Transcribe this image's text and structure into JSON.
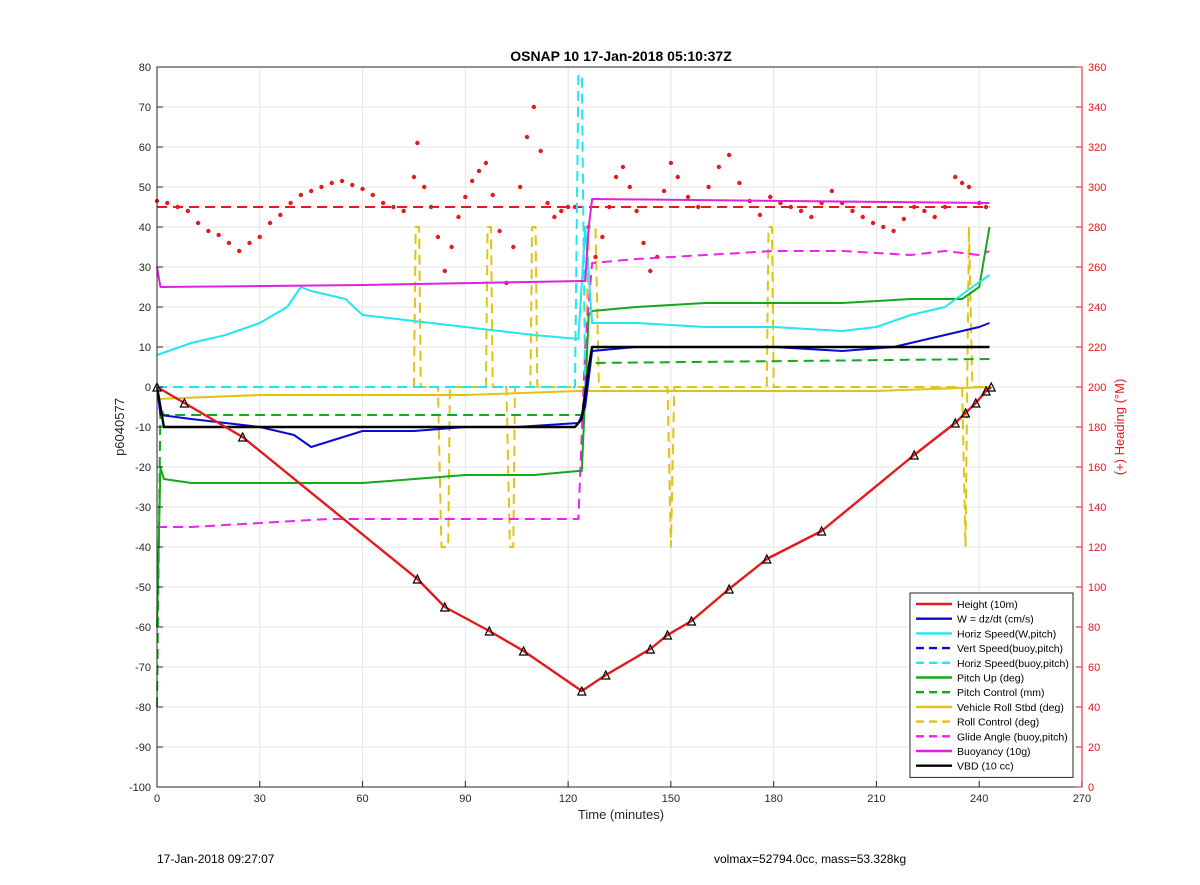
{
  "chart_data": {
    "type": "line",
    "title": "OSNAP 10 17-Jan-2018 05:10:37Z",
    "xlabel": "Time (minutes)",
    "ylabel_left": "p6040577",
    "ylabel_right": "(+) Heading (°M)",
    "xlim": [
      0,
      270
    ],
    "ylim_left": [
      -100,
      80
    ],
    "ylim_right": [
      0,
      360
    ],
    "x_ticks": [
      0,
      30,
      60,
      90,
      120,
      150,
      180,
      210,
      240,
      270
    ],
    "y_ticks_left": [
      -100,
      -90,
      -80,
      -70,
      -60,
      -50,
      -40,
      -30,
      -20,
      -10,
      0,
      10,
      20,
      30,
      40,
      50,
      60,
      70,
      80
    ],
    "y_ticks_right": [
      0,
      20,
      40,
      60,
      80,
      100,
      120,
      140,
      160,
      180,
      200,
      220,
      240,
      260,
      280,
      300,
      320,
      340,
      360
    ],
    "grid": true,
    "legend_position": "bottom-right",
    "colors": {
      "height": "#e31a1c",
      "w": "#0a0ad0",
      "horiz": "#22e6f0",
      "pitch": "#16a81a",
      "roll": "#e0c414",
      "glide": "#f020f0",
      "buoyancy": "#e020e0",
      "vbd": "#000000",
      "heading": "#e41a1c",
      "right_axis": "#e41a1c"
    },
    "series": [
      {
        "key": "height",
        "name": "Height (10m)",
        "style": "solid",
        "x": [
          0,
          8,
          25,
          76,
          84,
          97,
          107,
          124,
          131,
          144,
          149,
          156,
          167,
          178,
          194,
          221,
          233,
          236,
          239,
          242,
          243.5
        ],
        "y": [
          0,
          -4,
          -12.5,
          -48,
          -55,
          -61,
          -66,
          -76,
          -72,
          -65.5,
          -62,
          -58.5,
          -50.5,
          -43,
          -36,
          -17,
          -9,
          -6.5,
          -4,
          -1,
          0
        ]
      },
      {
        "key": "w",
        "name": "W = dz/dt (cm/s)",
        "style": "solid",
        "x": [
          0,
          1,
          10,
          20,
          30,
          40,
          45,
          60,
          75,
          90,
          105,
          123,
          125,
          127,
          140,
          160,
          180,
          200,
          215,
          225,
          235,
          240,
          243
        ],
        "y": [
          0,
          -7,
          -8,
          -9,
          -10,
          -12,
          -15,
          -11,
          -11,
          -10,
          -10,
          -9,
          -5,
          9,
          10,
          10,
          10,
          9,
          10,
          12,
          14,
          15,
          16
        ]
      },
      {
        "key": "horiz_wp",
        "name": "Horiz Speed(W,pitch)",
        "style": "solid",
        "x": [
          0,
          10,
          20,
          30,
          38,
          42,
          45,
          55,
          60,
          70,
          80,
          90,
          100,
          110,
          123,
          125,
          127,
          140,
          160,
          180,
          200,
          210,
          220,
          230,
          238,
          243
        ],
        "y": [
          8,
          11,
          13,
          16,
          20,
          25,
          24,
          22,
          18,
          17,
          16,
          15,
          14,
          13,
          12,
          40,
          16,
          16,
          15,
          15,
          14,
          15,
          18,
          20,
          25,
          28
        ]
      },
      {
        "key": "vert_buoy",
        "name": "Vert Speed(buoy,pitch)",
        "style": "dashed",
        "x": [],
        "y": []
      },
      {
        "key": "horiz_buoy",
        "name": "Horiz Speed(buoy,pitch)",
        "style": "dashed",
        "x": [
          0,
          122,
          123,
          124,
          125
        ],
        "y": [
          0,
          0,
          78,
          78,
          0
        ]
      },
      {
        "key": "pitch_up",
        "name": "Pitch Up (deg)",
        "style": "solid",
        "x": [
          0,
          1,
          2,
          10,
          30,
          60,
          90,
          110,
          123,
          124,
          126,
          127,
          140,
          160,
          180,
          200,
          220,
          235,
          240,
          243
        ],
        "y": [
          -60,
          -20,
          -23,
          -24,
          -24,
          -24,
          -22,
          -22,
          -21,
          -21,
          18,
          19,
          20,
          21,
          21,
          21,
          22,
          22,
          25,
          40
        ]
      },
      {
        "key": "pitch_control",
        "name": "Pitch Control (mm)",
        "style": "dashed",
        "x": [
          0,
          1,
          2,
          124,
          126,
          127,
          243
        ],
        "y": [
          -80,
          -5,
          -7,
          -7,
          5,
          6,
          7
        ]
      },
      {
        "key": "roll",
        "name": "Vehicle Roll Stbd (deg)",
        "style": "solid",
        "x": [
          0,
          30,
          60,
          90,
          123,
          124,
          126,
          150,
          180,
          210,
          243
        ],
        "y": [
          -3,
          -2,
          -2,
          -2,
          -1,
          -1,
          -1,
          -1,
          -1,
          -1,
          0
        ]
      },
      {
        "key": "roll_control",
        "name": "Roll Control (deg)",
        "style": "dashed",
        "x": [
          0,
          75,
          75.5,
          76.5,
          77,
          82,
          83,
          85,
          85.5,
          96,
          96.5,
          97.5,
          98,
          102,
          103,
          104,
          104.5,
          109,
          109.5,
          110.5,
          111,
          125,
          126,
          128,
          129,
          149,
          150,
          151,
          178,
          178.5,
          179.5,
          180,
          235,
          236,
          237,
          238,
          243
        ],
        "y": [
          0,
          0,
          40,
          40,
          0,
          0,
          -40,
          -40,
          0,
          0,
          40,
          40,
          0,
          0,
          -40,
          -40,
          0,
          0,
          40,
          40,
          0,
          0,
          40,
          40,
          0,
          0,
          -40,
          0,
          0,
          40,
          40,
          0,
          0,
          -40,
          40,
          0,
          0
        ]
      },
      {
        "key": "glide",
        "name": "Glide Angle (buoy,pitch)",
        "style": "dashed",
        "x": [
          0,
          10,
          30,
          50,
          70,
          90,
          110,
          123,
          125,
          127,
          140,
          160,
          180,
          200,
          220,
          230,
          240,
          243
        ],
        "y": [
          -35,
          -35,
          -34,
          -33,
          -33,
          -33,
          -33,
          -33,
          10,
          31,
          32,
          33,
          34,
          34,
          33,
          34,
          33,
          34
        ]
      },
      {
        "key": "buoyancy",
        "name": "Buoyancy (10g)",
        "style": "solid",
        "x": [
          0,
          1,
          60,
          124,
          125,
          126,
          127,
          243
        ],
        "y": [
          30,
          25,
          25.5,
          26.5,
          26.5,
          40,
          47,
          46
        ]
      },
      {
        "key": "vbd",
        "name": "VBD (10 cc)",
        "style": "solid",
        "x": [
          0,
          2,
          122,
          124,
          126,
          127,
          243
        ],
        "y": [
          0,
          -10,
          -10,
          -8,
          5,
          10,
          10
        ]
      }
    ],
    "heading": {
      "name": "Heading",
      "axis": "right",
      "reference": 290,
      "x": [
        0,
        3,
        6,
        9,
        12,
        15,
        18,
        21,
        24,
        27,
        30,
        33,
        36,
        39,
        42,
        45,
        48,
        51,
        54,
        57,
        60,
        63,
        66,
        69,
        72,
        75,
        76,
        78,
        80,
        82,
        84,
        86,
        88,
        90,
        92,
        94,
        96,
        98,
        100,
        102,
        104,
        106,
        108,
        110,
        112,
        114,
        116,
        118,
        120,
        122,
        126,
        128,
        130,
        132,
        134,
        136,
        138,
        140,
        142,
        144,
        146,
        148,
        150,
        152,
        155,
        158,
        161,
        164,
        167,
        170,
        173,
        176,
        179,
        182,
        185,
        188,
        191,
        194,
        197,
        200,
        203,
        206,
        209,
        212,
        215,
        218,
        221,
        224,
        227,
        230,
        233,
        235,
        237,
        240,
        242
      ],
      "y": [
        293,
        292,
        290,
        288,
        282,
        278,
        276,
        272,
        268,
        272,
        275,
        282,
        286,
        292,
        296,
        298,
        300,
        302,
        303,
        301,
        299,
        296,
        292,
        290,
        288,
        305,
        322,
        300,
        290,
        275,
        258,
        270,
        285,
        295,
        303,
        308,
        312,
        296,
        278,
        252,
        270,
        300,
        325,
        340,
        318,
        292,
        285,
        288,
        290,
        290,
        280,
        265,
        275,
        290,
        305,
        310,
        300,
        288,
        272,
        258,
        265,
        298,
        312,
        305,
        295,
        290,
        300,
        310,
        316,
        302,
        293,
        286,
        295,
        292,
        290,
        288,
        285,
        292,
        298,
        292,
        288,
        285,
        282,
        280,
        278,
        284,
        290,
        288,
        285,
        290,
        305,
        302,
        300,
        292,
        290
      ]
    },
    "markers_on": "height"
  },
  "footer": {
    "left": "17-Jan-2018 09:27:07",
    "right": "volmax=52794.0cc, mass=53.328kg"
  }
}
